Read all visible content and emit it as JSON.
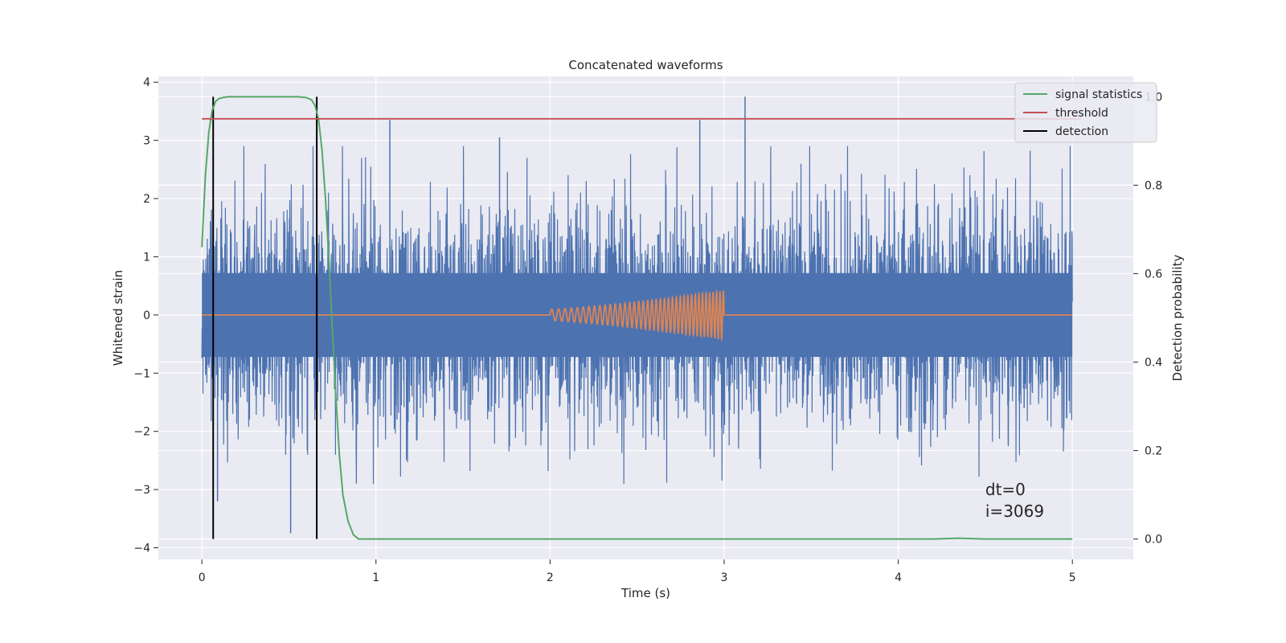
{
  "chart_data": {
    "type": "line",
    "title": "Concatenated waveforms",
    "xlabel": "Time (s)",
    "ylabel": "Whitened strain",
    "ylabel_right": "Detection probability",
    "xlim": [
      -0.25,
      5.35
    ],
    "ylim": [
      -4.2,
      4.1
    ],
    "ylim_right": [
      -0.046,
      1.046
    ],
    "x_ticks": [
      0,
      1,
      2,
      3,
      4,
      5
    ],
    "y_ticks": [
      -4,
      -3,
      -2,
      -1,
      0,
      1,
      2,
      3,
      4
    ],
    "y_ticks_right": [
      0.0,
      0.2,
      0.4,
      0.6,
      0.8,
      1.0
    ],
    "x_tick_labels": [
      "0",
      "1",
      "2",
      "3",
      "4",
      "5"
    ],
    "y_tick_labels": [
      "−4",
      "−3",
      "−2",
      "−1",
      "0",
      "1",
      "2",
      "3",
      "4"
    ],
    "y_tick_labels_right": [
      "0.0",
      "0.2",
      "0.4",
      "0.6",
      "0.8",
      "1.0"
    ],
    "grid": true,
    "legend_position": "top-right",
    "colors": {
      "noise": "#4c72b0",
      "waveform": "#dd8452",
      "signal_statistics": "#55a868",
      "threshold": "#c44e52",
      "detection": "#000000",
      "axes_bg": "#eaeaf2",
      "grid": "#ffffff"
    },
    "series": [
      {
        "name": "",
        "axis": "left",
        "description_role": "whitened noise strain",
        "x_range": [
          0,
          5
        ],
        "amplitude_core": 0.72,
        "peaks": [
          {
            "x": 1.08,
            "y": 3.35
          },
          {
            "x": 3.12,
            "y": 3.75
          },
          {
            "x": 0.51,
            "y": -3.75
          },
          {
            "x": 0.09,
            "y": -3.2
          },
          {
            "x": 2.86,
            "y": 3.35
          },
          {
            "x": 1.71,
            "y": 3.05
          }
        ]
      },
      {
        "name": "",
        "axis": "left",
        "description_role": "injected chirp waveform",
        "x_range": [
          0,
          5
        ],
        "chirp_start": 2.0,
        "chirp_end": 3.0,
        "amplitude_start": 0.1,
        "amplitude_end": 0.42,
        "freq_start": 25,
        "freq_end": 52
      },
      {
        "name": "signal statistics",
        "axis": "right",
        "x": [
          0.0,
          0.02,
          0.04,
          0.06,
          0.08,
          0.1,
          0.12,
          0.15,
          0.2,
          0.3,
          0.4,
          0.5,
          0.55,
          0.6,
          0.63,
          0.65,
          0.67,
          0.69,
          0.71,
          0.73,
          0.75,
          0.77,
          0.79,
          0.81,
          0.84,
          0.87,
          0.9,
          1.0,
          2.0,
          3.0,
          4.0,
          4.2,
          4.35,
          4.5,
          5.0
        ],
        "y": [
          0.66,
          0.82,
          0.92,
          0.97,
          0.99,
          0.996,
          0.998,
          1.0,
          1.0,
          1.0,
          1.0,
          1.0,
          1.0,
          0.998,
          0.993,
          0.98,
          0.95,
          0.88,
          0.77,
          0.63,
          0.47,
          0.32,
          0.19,
          0.1,
          0.04,
          0.01,
          0.0,
          0.0,
          0.0,
          0.0,
          0.0,
          0.0,
          0.002,
          0.0,
          0.0
        ]
      },
      {
        "name": "threshold",
        "axis": "right",
        "x": [
          0,
          5.05
        ],
        "y": [
          0.95,
          0.95
        ]
      },
      {
        "name": "detection",
        "axis": "right",
        "type": "vline",
        "x": [
          0.065,
          0.66
        ],
        "y_range": [
          0,
          1
        ]
      }
    ],
    "annotations": [
      "dt=0",
      "i=3069"
    ]
  }
}
